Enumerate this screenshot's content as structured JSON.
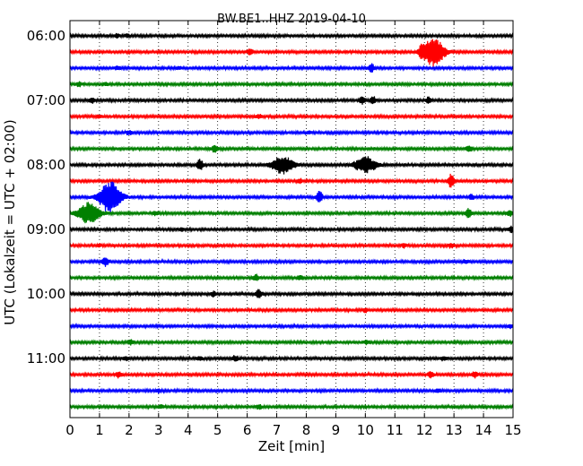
{
  "chart_data": {
    "type": "line",
    "title": "BW.BE1..HHZ 2019-04-10",
    "xlabel": "Zeit  [min]",
    "ylabel": "UTC (Lokalzeit = UTC + 02:00)",
    "xlim": [
      0,
      15
    ],
    "x_ticks": [
      0,
      1,
      2,
      3,
      4,
      5,
      6,
      7,
      8,
      9,
      10,
      11,
      12,
      13,
      14,
      15
    ],
    "x_tick_labels": [
      "0",
      "1",
      "2",
      "3",
      "4",
      "5",
      "6",
      "7",
      "8",
      "9",
      "10",
      "11",
      "12",
      "13",
      "14",
      "15"
    ],
    "y_tick_labels": [
      "06:00",
      "07:00",
      "08:00",
      "09:00",
      "10:00",
      "11:00"
    ],
    "y_tick_rows": [
      0,
      4,
      8,
      12,
      16,
      20
    ],
    "grid": "vertical-dotted",
    "trace_colors": [
      "#000000",
      "#ff0000",
      "#0000ff",
      "#008000"
    ],
    "series": [
      {
        "start": "06:00",
        "events": [
          [
            1.6,
            0.12
          ],
          [
            1.95,
            0.1
          ]
        ]
      },
      {
        "start": "06:15",
        "events": [
          [
            6.1,
            0.18
          ],
          [
            12.3,
            0.95
          ],
          [
            11.9,
            0.25
          ]
        ]
      },
      {
        "start": "06:30",
        "events": [
          [
            1.6,
            0.12
          ],
          [
            3.7,
            0.08
          ],
          [
            10.2,
            0.3
          ]
        ]
      },
      {
        "start": "06:45",
        "events": [
          [
            0.3,
            0.15
          ],
          [
            1.2,
            0.1
          ]
        ]
      },
      {
        "start": "07:00",
        "events": [
          [
            0.75,
            0.2
          ],
          [
            9.9,
            0.25
          ],
          [
            10.25,
            0.3
          ],
          [
            12.15,
            0.2
          ]
        ]
      },
      {
        "start": "07:15",
        "events": [
          [
            1.0,
            0.1
          ],
          [
            6.4,
            0.12
          ]
        ]
      },
      {
        "start": "07:30",
        "events": [
          [
            2.0,
            0.12
          ],
          [
            8.1,
            0.1
          ]
        ]
      },
      {
        "start": "07:45",
        "events": [
          [
            4.9,
            0.25
          ],
          [
            13.5,
            0.2
          ]
        ]
      },
      {
        "start": "08:00",
        "events": [
          [
            4.4,
            0.4
          ],
          [
            7.2,
            0.6
          ],
          [
            10.0,
            0.55
          ]
        ]
      },
      {
        "start": "08:15",
        "events": [
          [
            7.8,
            0.12
          ],
          [
            12.9,
            0.45
          ]
        ]
      },
      {
        "start": "08:30",
        "events": [
          [
            1.35,
            1.1
          ],
          [
            8.45,
            0.4
          ],
          [
            13.6,
            0.15
          ]
        ]
      },
      {
        "start": "08:45",
        "events": [
          [
            0.65,
            0.7
          ],
          [
            2.9,
            0.12
          ],
          [
            13.5,
            0.3
          ],
          [
            14.9,
            0.2
          ]
        ]
      },
      {
        "start": "09:00",
        "events": [
          [
            3.8,
            0.08
          ],
          [
            14.95,
            0.2
          ]
        ]
      },
      {
        "start": "09:15",
        "events": [
          [
            1.0,
            0.08
          ],
          [
            11.3,
            0.12
          ],
          [
            12.9,
            0.15
          ]
        ]
      },
      {
        "start": "09:30",
        "events": [
          [
            1.2,
            0.3
          ],
          [
            13.4,
            0.12
          ]
        ]
      },
      {
        "start": "09:45",
        "events": [
          [
            6.3,
            0.2
          ],
          [
            7.8,
            0.12
          ]
        ]
      },
      {
        "start": "10:00",
        "events": [
          [
            4.85,
            0.15
          ],
          [
            6.4,
            0.3
          ]
        ]
      },
      {
        "start": "10:15",
        "events": [
          [
            10.0,
            0.15
          ]
        ]
      },
      {
        "start": "10:30",
        "events": [
          [
            14.9,
            0.1
          ]
        ]
      },
      {
        "start": "10:45",
        "events": [
          [
            2.05,
            0.15
          ],
          [
            10.05,
            0.12
          ]
        ]
      },
      {
        "start": "11:00",
        "events": [
          [
            1.9,
            0.12
          ],
          [
            4.4,
            0.12
          ],
          [
            5.6,
            0.2
          ],
          [
            12.65,
            0.15
          ]
        ]
      },
      {
        "start": "11:15",
        "events": [
          [
            1.65,
            0.18
          ],
          [
            12.2,
            0.2
          ],
          [
            13.7,
            0.2
          ]
        ]
      },
      {
        "start": "11:30",
        "events": [
          [
            3.0,
            0.12
          ],
          [
            12.45,
            0.12
          ]
        ]
      },
      {
        "start": "11:45",
        "events": [
          [
            3.1,
            0.1
          ],
          [
            6.4,
            0.15
          ]
        ]
      }
    ]
  }
}
